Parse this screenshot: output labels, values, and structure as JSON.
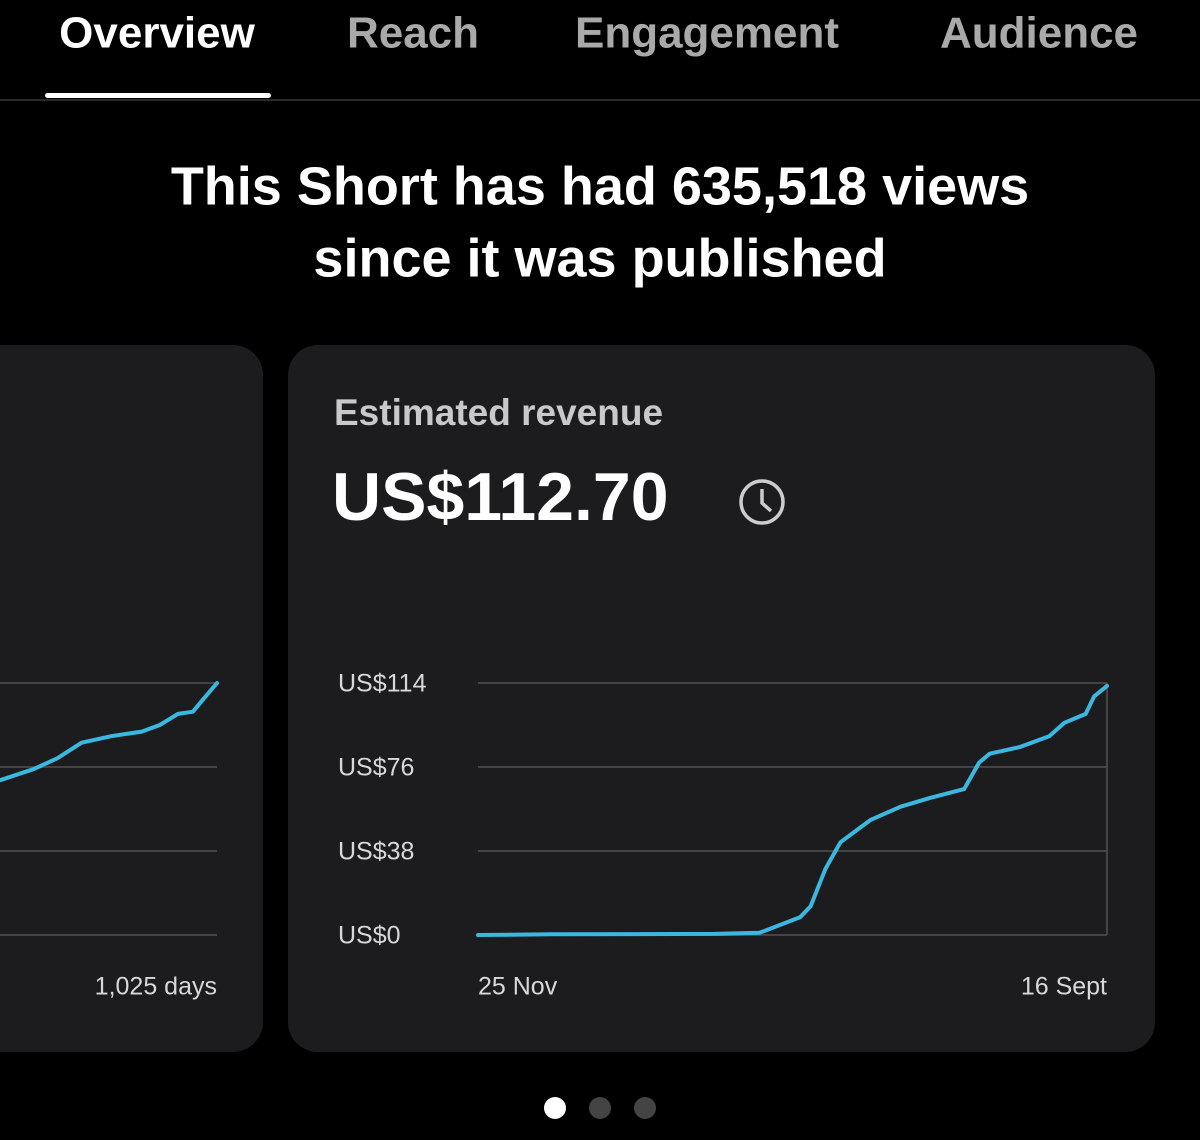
{
  "tabs": [
    "Overview",
    "Reach",
    "Engagement",
    "Audience"
  ],
  "headline": [
    "This Short has had 635,518 views",
    "since it was published"
  ],
  "card": {
    "title": "Estimated revenue",
    "value": "US$112.70"
  },
  "chart_data": [
    {
      "type": "line",
      "color": "#3ab8e0",
      "x": [
        600,
        664,
        720,
        760,
        800,
        850,
        900,
        930,
        960,
        985,
        1000,
        1025
      ],
      "values": [
        66,
        70,
        75,
        80,
        87,
        90,
        92,
        95,
        100,
        101,
        106,
        114
      ],
      "xlim": [
        0,
        1025
      ],
      "xticks": [
        {
          "value": 1025,
          "label": "1,025 days"
        }
      ],
      "ylim": [
        0,
        114
      ],
      "yticks": [
        0,
        38,
        76,
        114
      ],
      "grid": true
    },
    {
      "type": "line",
      "color": "#3ab8e0",
      "x": [
        0,
        34,
        111,
        132,
        151,
        156,
        163,
        170,
        184,
        198,
        212,
        228,
        235,
        240,
        254,
        268,
        275,
        285,
        289,
        295
      ],
      "values": [
        0,
        0.3,
        0.5,
        1,
        8,
        13,
        30,
        42,
        52,
        58,
        62,
        66,
        78,
        82,
        85,
        90,
        96,
        100,
        108,
        112.7
      ],
      "xlim": [
        0,
        295
      ],
      "xticks": [
        {
          "value": 0,
          "label": "25 Nov"
        },
        {
          "value": 295,
          "label": "16 Sept"
        }
      ],
      "ylim": [
        0,
        114
      ],
      "yticks": [
        {
          "value": 0,
          "label": "US$0"
        },
        {
          "value": 38,
          "label": "US$38"
        },
        {
          "value": 76,
          "label": "US$76"
        },
        {
          "value": 114,
          "label": "US$114"
        }
      ],
      "grid": true
    }
  ]
}
